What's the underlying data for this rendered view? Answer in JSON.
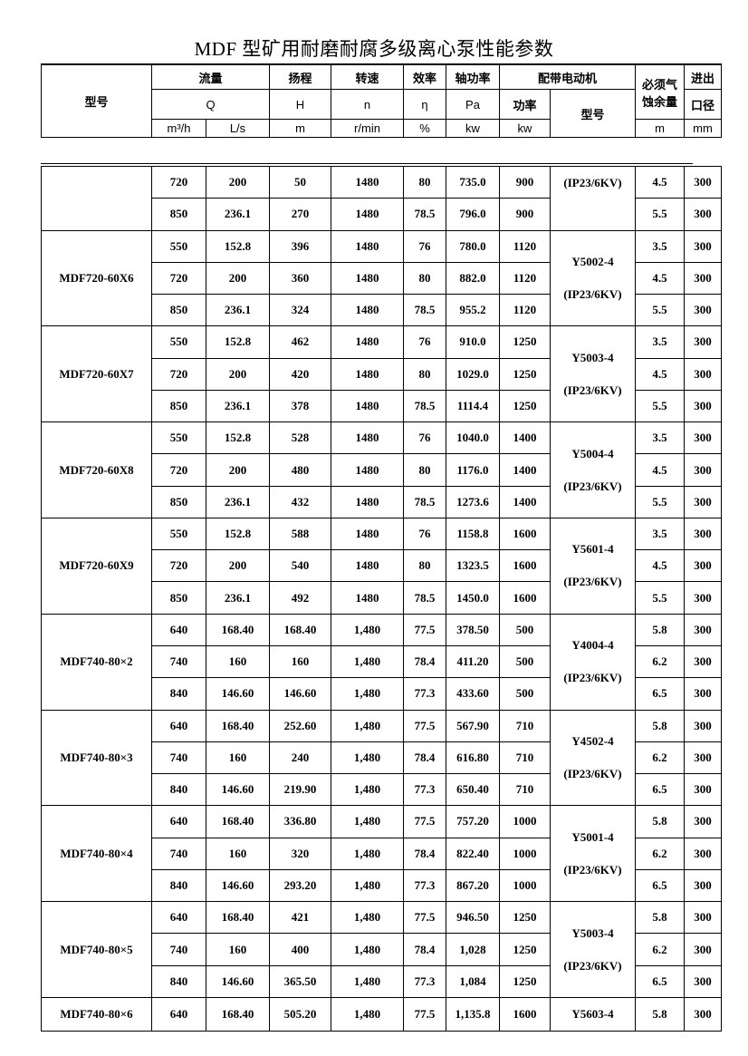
{
  "title": "MDF 型矿用耐磨耐腐多级离心泵性能参数",
  "header": {
    "model": "型号",
    "flow": "流量",
    "head": "扬程",
    "speed": "转速",
    "efficiency": "效率",
    "shaft_power": "轴功率",
    "motor": "配带电动机",
    "npsh_line1": "必须气",
    "npsh_line2": "蚀余量",
    "port_line1": "进出",
    "port_line2": "口径",
    "Q": "Q",
    "H": "H",
    "n": "n",
    "eta": "η",
    "Pa": "Pa",
    "motor_power": "功率",
    "motor_model": "型号",
    "unit_m3h": "m³/h",
    "unit_ls": "L/s",
    "unit_m": "m",
    "unit_rmin": "r/min",
    "unit_pct": "%",
    "unit_kw": "kw",
    "unit_kw2": "kw",
    "unit_m2": "m",
    "unit_mm": "mm"
  },
  "groups": [
    {
      "model": "",
      "motor": [
        "(IP23/6KV)"
      ],
      "rows": [
        [
          "720",
          "200",
          "50",
          "1480",
          "80",
          "735.0",
          "900",
          "4.5",
          "300"
        ],
        [
          "850",
          "236.1",
          "270",
          "1480",
          "78.5",
          "796.0",
          "900",
          "5.5",
          "300"
        ]
      ]
    },
    {
      "model": "MDF720-60X6",
      "motor": [
        "Y5002-4",
        "(IP23/6KV)"
      ],
      "rows": [
        [
          "550",
          "152.8",
          "396",
          "1480",
          "76",
          "780.0",
          "1120",
          "3.5",
          "300"
        ],
        [
          "720",
          "200",
          "360",
          "1480",
          "80",
          "882.0",
          "1120",
          "4.5",
          "300"
        ],
        [
          "850",
          "236.1",
          "324",
          "1480",
          "78.5",
          "955.2",
          "1120",
          "5.5",
          "300"
        ]
      ]
    },
    {
      "model": "MDF720-60X7",
      "motor": [
        "Y5003-4",
        "(IP23/6KV)"
      ],
      "rows": [
        [
          "550",
          "152.8",
          "462",
          "1480",
          "76",
          "910.0",
          "1250",
          "3.5",
          "300"
        ],
        [
          "720",
          "200",
          "420",
          "1480",
          "80",
          "1029.0",
          "1250",
          "4.5",
          "300"
        ],
        [
          "850",
          "236.1",
          "378",
          "1480",
          "78.5",
          "1114.4",
          "1250",
          "5.5",
          "300"
        ]
      ]
    },
    {
      "model": "MDF720-60X8",
      "motor": [
        "Y5004-4",
        "(IP23/6KV)"
      ],
      "rows": [
        [
          "550",
          "152.8",
          "528",
          "1480",
          "76",
          "1040.0",
          "1400",
          "3.5",
          "300"
        ],
        [
          "720",
          "200",
          "480",
          "1480",
          "80",
          "1176.0",
          "1400",
          "4.5",
          "300"
        ],
        [
          "850",
          "236.1",
          "432",
          "1480",
          "78.5",
          "1273.6",
          "1400",
          "5.5",
          "300"
        ]
      ]
    },
    {
      "model": "MDF720-60X9",
      "motor": [
        "Y5601-4",
        "(IP23/6KV)"
      ],
      "rows": [
        [
          "550",
          "152.8",
          "588",
          "1480",
          "76",
          "1158.8",
          "1600",
          "3.5",
          "300"
        ],
        [
          "720",
          "200",
          "540",
          "1480",
          "80",
          "1323.5",
          "1600",
          "4.5",
          "300"
        ],
        [
          "850",
          "236.1",
          "492",
          "1480",
          "78.5",
          "1450.0",
          "1600",
          "5.5",
          "300"
        ]
      ]
    },
    {
      "model": "MDF740-80×2",
      "motor": [
        "Y4004-4",
        "(IP23/6KV)"
      ],
      "rows": [
        [
          "640",
          "168.40",
          "168.40",
          "1,480",
          "77.5",
          "378.50",
          "500",
          "5.8",
          "300"
        ],
        [
          "740",
          "160",
          "160",
          "1,480",
          "78.4",
          "411.20",
          "500",
          "6.2",
          "300"
        ],
        [
          "840",
          "146.60",
          "146.60",
          "1,480",
          "77.3",
          "433.60",
          "500",
          "6.5",
          "300"
        ]
      ]
    },
    {
      "model": "MDF740-80×3",
      "motor": [
        "Y4502-4",
        "(IP23/6KV)"
      ],
      "rows": [
        [
          "640",
          "168.40",
          "252.60",
          "1,480",
          "77.5",
          "567.90",
          "710",
          "5.8",
          "300"
        ],
        [
          "740",
          "160",
          "240",
          "1,480",
          "78.4",
          "616.80",
          "710",
          "6.2",
          "300"
        ],
        [
          "840",
          "146.60",
          "219.90",
          "1,480",
          "77.3",
          "650.40",
          "710",
          "6.5",
          "300"
        ]
      ]
    },
    {
      "model": "MDF740-80×4",
      "motor": [
        "Y5001-4",
        "(IP23/6KV)"
      ],
      "rows": [
        [
          "640",
          "168.40",
          "336.80",
          "1,480",
          "77.5",
          "757.20",
          "1000",
          "5.8",
          "300"
        ],
        [
          "740",
          "160",
          "320",
          "1,480",
          "78.4",
          "822.40",
          "1000",
          "6.2",
          "300"
        ],
        [
          "840",
          "146.60",
          "293.20",
          "1,480",
          "77.3",
          "867.20",
          "1000",
          "6.5",
          "300"
        ]
      ]
    },
    {
      "model": "MDF740-80×5",
      "motor": [
        "Y5003-4",
        "(IP23/6KV)"
      ],
      "rows": [
        [
          "640",
          "168.40",
          "421",
          "1,480",
          "77.5",
          "946.50",
          "1250",
          "5.8",
          "300"
        ],
        [
          "740",
          "160",
          "400",
          "1,480",
          "78.4",
          "1,028",
          "1250",
          "6.2",
          "300"
        ],
        [
          "840",
          "146.60",
          "365.50",
          "1,480",
          "77.3",
          "1,084",
          "1250",
          "6.5",
          "300"
        ]
      ]
    },
    {
      "model": "MDF740-80×6",
      "motor": [
        "Y5603-4"
      ],
      "rows": [
        [
          "640",
          "168.40",
          "505.20",
          "1,480",
          "77.5",
          "1,135.8",
          "1600",
          "5.8",
          "300"
        ]
      ]
    }
  ]
}
